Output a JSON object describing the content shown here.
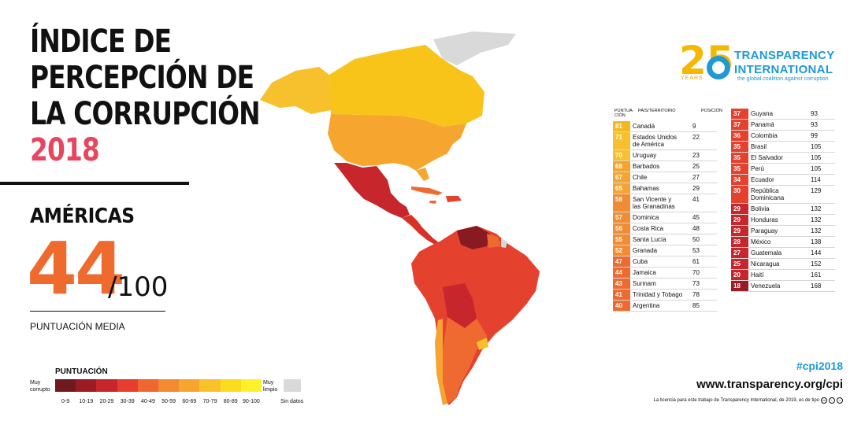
{
  "title": {
    "line1": "ÍNDICE DE",
    "line2": "PERCEPCIÓN DE",
    "line3": "LA CORRUPCIÓN",
    "year": "2018"
  },
  "region": "AMÉRICAS",
  "score": {
    "value": "44",
    "max": "/100",
    "label": "PUNTUACIÓN MEDIA"
  },
  "legend": {
    "title": "PUNTUACIÓN",
    "left_label": [
      "Muy",
      "corrupto"
    ],
    "right_label": [
      "Muy",
      "limpio"
    ],
    "ranges": [
      "0-9",
      "10-19",
      "20-29",
      "30-39",
      "40-49",
      "50-59",
      "60-69",
      "70-79",
      "80-89",
      "90-100"
    ],
    "colors": [
      "#6e1a1f",
      "#9b1c25",
      "#c7262b",
      "#e63d2e",
      "#ef6630",
      "#f18a31",
      "#f6a62f",
      "#f9c22a",
      "#fbdb1e",
      "#fef12a"
    ],
    "no_data": "Sin datos",
    "no_data_color": "#d9d9d9"
  },
  "logo": {
    "name1": "TRANSPARENCY",
    "name2": "INTERNATIONAL",
    "tagline": "the global coalition against corruption",
    "years": "YEARS",
    "anniversary": "25"
  },
  "table_headers": {
    "score": [
      "PUNTUA-",
      "CIÓN"
    ],
    "country": "PAÍS/TERRITORIO",
    "position": "POSICIÓN"
  },
  "rankings_left": [
    {
      "score": "81",
      "country": [
        "Canadá"
      ],
      "rank": "9",
      "color": "#f3b71f"
    },
    {
      "score": "71",
      "country": [
        "Estados Unidos",
        "de América"
      ],
      "rank": "22",
      "color": "#f6c12c"
    },
    {
      "score": "70",
      "country": [
        "Uruguay"
      ],
      "rank": "23",
      "color": "#f6c12c"
    },
    {
      "score": "68",
      "country": [
        "Barbados"
      ],
      "rank": "25",
      "color": "#f5a431"
    },
    {
      "score": "67",
      "country": [
        "Chile"
      ],
      "rank": "27",
      "color": "#f5a431"
    },
    {
      "score": "65",
      "country": [
        "Bahamas"
      ],
      "rank": "29",
      "color": "#f5a431"
    },
    {
      "score": "58",
      "country": [
        "San Vicente y",
        "las Granadinas"
      ],
      "rank": "41",
      "color": "#f28c33"
    },
    {
      "score": "57",
      "country": [
        "Dominica"
      ],
      "rank": "45",
      "color": "#f28c33"
    },
    {
      "score": "56",
      "country": [
        "Costa Rica"
      ],
      "rank": "48",
      "color": "#f28c33"
    },
    {
      "score": "55",
      "country": [
        "Santa Lucía"
      ],
      "rank": "50",
      "color": "#f28c33"
    },
    {
      "score": "52",
      "country": [
        "Granada"
      ],
      "rank": "53",
      "color": "#f28c33"
    },
    {
      "score": "47",
      "country": [
        "Cuba"
      ],
      "rank": "61",
      "color": "#ef6a30"
    },
    {
      "score": "44",
      "country": [
        "Jamaica"
      ],
      "rank": "70",
      "color": "#ef6a30"
    },
    {
      "score": "43",
      "country": [
        "Surinam"
      ],
      "rank": "73",
      "color": "#ef6a30"
    },
    {
      "score": "41",
      "country": [
        "Trinidad y Tobago"
      ],
      "rank": "78",
      "color": "#ef6a30"
    },
    {
      "score": "40",
      "country": [
        "Argentina"
      ],
      "rank": "85",
      "color": "#ef6a30"
    }
  ],
  "rankings_right": [
    {
      "score": "37",
      "country": [
        "Guyana"
      ],
      "rank": "93",
      "color": "#e5412f"
    },
    {
      "score": "37",
      "country": [
        "Panamá"
      ],
      "rank": "93",
      "color": "#e5412f"
    },
    {
      "score": "36",
      "country": [
        "Colombia"
      ],
      "rank": "99",
      "color": "#e5412f"
    },
    {
      "score": "35",
      "country": [
        "Brasil"
      ],
      "rank": "105",
      "color": "#e5412f"
    },
    {
      "score": "35",
      "country": [
        "El Salvador"
      ],
      "rank": "105",
      "color": "#e5412f"
    },
    {
      "score": "35",
      "country": [
        "Perú"
      ],
      "rank": "105",
      "color": "#e5412f"
    },
    {
      "score": "34",
      "country": [
        "Ecuador"
      ],
      "rank": "114",
      "color": "#e5412f"
    },
    {
      "score": "30",
      "country": [
        "República",
        "Dominicana"
      ],
      "rank": "129",
      "color": "#e5412f"
    },
    {
      "score": "29",
      "country": [
        "Bolivia"
      ],
      "rank": "132",
      "color": "#c7262c"
    },
    {
      "score": "29",
      "country": [
        "Honduras"
      ],
      "rank": "132",
      "color": "#c7262c"
    },
    {
      "score": "29",
      "country": [
        "Paraguay"
      ],
      "rank": "132",
      "color": "#c7262c"
    },
    {
      "score": "28",
      "country": [
        "México"
      ],
      "rank": "138",
      "color": "#c7262c"
    },
    {
      "score": "27",
      "country": [
        "Guatemala"
      ],
      "rank": "144",
      "color": "#c7262c"
    },
    {
      "score": "25",
      "country": [
        "Nicaragua"
      ],
      "rank": "152",
      "color": "#c7262c"
    },
    {
      "score": "20",
      "country": [
        "Haití"
      ],
      "rank": "161",
      "color": "#c7262c"
    },
    {
      "score": "18",
      "country": [
        "Venezuela"
      ],
      "rank": "168",
      "color": "#9b1c25"
    }
  ],
  "footer": {
    "hashtag": "#cpi2018",
    "website": "www.transparency.org/cpi",
    "license": "La licencia para este trabajo de Transparency International, de 2019, es de tipo"
  }
}
